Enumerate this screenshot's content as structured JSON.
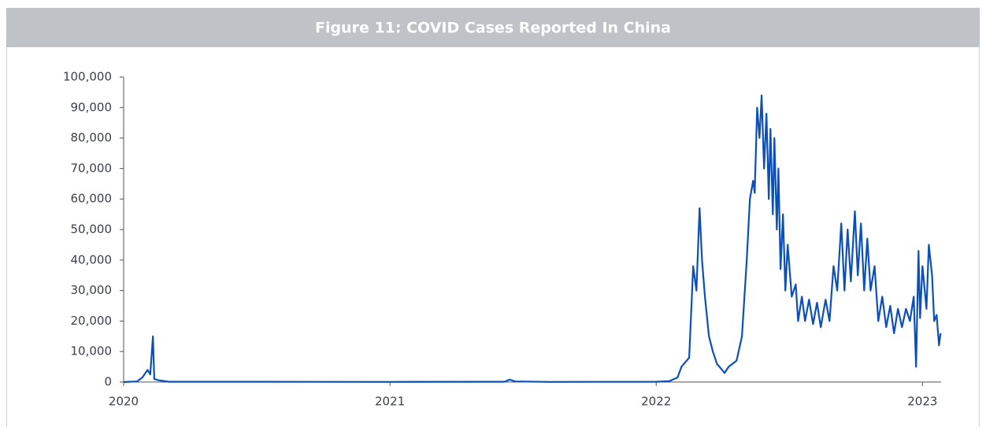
{
  "chart_data": {
    "type": "line",
    "title": "Figure 11: COVID Cases Reported In China",
    "x": [
      2020.0,
      2020.05,
      2020.07,
      2020.09,
      2020.1,
      2020.11,
      2020.115,
      2020.13,
      2020.17,
      2020.5,
      2021.0,
      2021.43,
      2021.45,
      2021.47,
      2021.6,
      2022.0,
      2022.05,
      2022.08,
      2022.095,
      2022.124,
      2022.139,
      2022.151,
      2022.163,
      2022.172,
      2022.183,
      2022.198,
      2022.213,
      2022.228,
      2022.257,
      2022.272,
      2022.302,
      2022.322,
      2022.34,
      2022.352,
      2022.364,
      2022.37,
      2022.379,
      2022.388,
      2022.396,
      2022.405,
      2022.414,
      2022.423,
      2022.429,
      2022.438,
      2022.444,
      2022.453,
      2022.459,
      2022.467,
      2022.476,
      2022.485,
      2022.494,
      2022.509,
      2022.524,
      2022.533,
      2022.547,
      2022.559,
      2022.574,
      2022.589,
      2022.604,
      2022.618,
      2022.636,
      2022.651,
      2022.666,
      2022.68,
      2022.695,
      2022.707,
      2022.719,
      2022.731,
      2022.746,
      2022.757,
      2022.769,
      2022.781,
      2022.793,
      2022.805,
      2022.82,
      2022.834,
      2022.849,
      2022.864,
      2022.879,
      2022.893,
      2022.908,
      2022.923,
      2022.938,
      2022.953,
      2022.967,
      2022.976,
      2022.985,
      2022.991,
      2023.0,
      2023.015,
      2023.024,
      2023.036,
      2023.044,
      2023.053,
      2023.062,
      2023.068
    ],
    "series": [
      {
        "name": "COVID cases",
        "color": "#0b4fba",
        "values": [
          0,
          200,
          1500,
          4000,
          2500,
          15000,
          1000,
          600,
          100,
          100,
          50,
          100,
          800,
          200,
          50,
          100,
          300,
          1500,
          5000,
          8000,
          38000,
          30000,
          57000,
          40000,
          28000,
          15000,
          10000,
          6000,
          3000,
          5000,
          7000,
          15000,
          40000,
          60000,
          66000,
          62000,
          90000,
          80000,
          94000,
          70000,
          88000,
          60000,
          83000,
          55000,
          80000,
          50000,
          70000,
          37000,
          55000,
          30000,
          45000,
          28000,
          32000,
          20000,
          28000,
          20000,
          27000,
          19000,
          26000,
          18000,
          27000,
          20000,
          38000,
          30000,
          52000,
          30000,
          50000,
          33000,
          56000,
          35000,
          52000,
          30000,
          47000,
          30000,
          38000,
          20000,
          28000,
          18000,
          25000,
          16000,
          24000,
          18000,
          24000,
          20000,
          28000,
          5000,
          43000,
          21000,
          38000,
          24000,
          45000,
          35000,
          20000,
          22000,
          12000,
          16000
        ]
      }
    ],
    "xlim": [
      2020,
      2023.07
    ],
    "xticks": [
      2020,
      2021,
      2022,
      2023
    ],
    "ylim": [
      0,
      100000
    ],
    "yticks": [
      0,
      {
        "value": 10000,
        "label": "10,000"
      },
      {
        "value": 20000,
        "label": "20,000"
      },
      {
        "value": 30000,
        "label": "30,000"
      },
      {
        "value": 40000,
        "label": "40,000"
      },
      {
        "value": 50000,
        "label": "50,000"
      },
      {
        "value": 60000,
        "label": "60,000"
      },
      {
        "value": 70000,
        "label": "70,000"
      },
      {
        "value": 80000,
        "label": "80,000"
      },
      {
        "value": 90000,
        "label": "90,000"
      },
      {
        "value": 100000,
        "label": "100,000"
      }
    ]
  }
}
